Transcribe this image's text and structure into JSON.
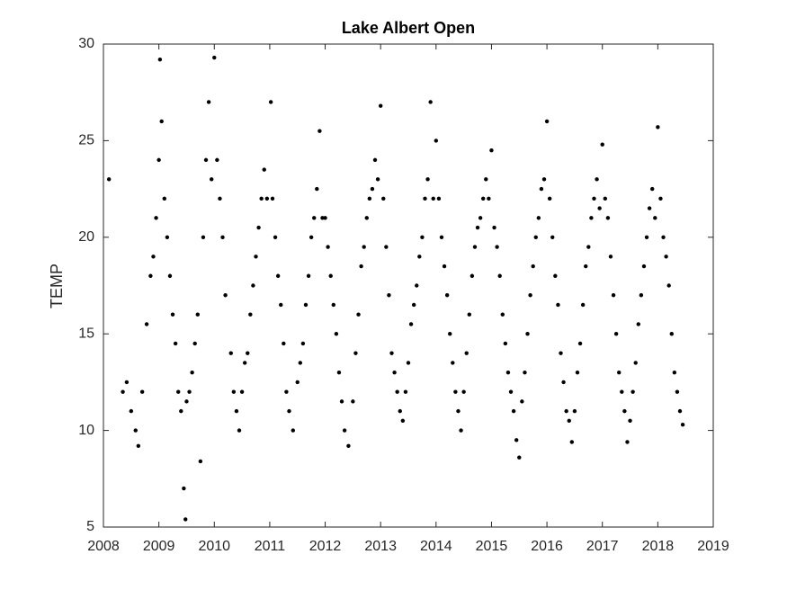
{
  "chart_data": {
    "type": "scatter",
    "title": "Lake Albert Open",
    "y_label": "TEMP",
    "xlim": [
      2008,
      2019
    ],
    "xticks": [
      2008,
      2009,
      2010,
      2011,
      2012,
      2013,
      2014,
      2015,
      2016,
      2017,
      2018,
      2019
    ],
    "ylim": [
      5,
      30
    ],
    "yticks": [
      5,
      10,
      15,
      20,
      25,
      30
    ],
    "grid": false,
    "series": [
      {
        "color": "#000000",
        "x": [
          2008.1,
          2008.35,
          2008.42,
          2008.5,
          2008.58,
          2008.63,
          2008.7,
          2008.78,
          2008.85,
          2008.9,
          2008.95,
          2009.0,
          2009.02,
          2009.05,
          2009.1,
          2009.15,
          2009.2,
          2009.25,
          2009.3,
          2009.35,
          2009.4,
          2009.45,
          2009.48,
          2009.5,
          2009.55,
          2009.6,
          2009.65,
          2009.7,
          2009.75,
          2009.8,
          2009.85,
          2009.9,
          2009.95,
          2010.0,
          2010.05,
          2010.1,
          2010.15,
          2010.2,
          2010.3,
          2010.35,
          2010.4,
          2010.45,
          2010.5,
          2010.55,
          2010.6,
          2010.65,
          2010.7,
          2010.75,
          2010.8,
          2010.85,
          2010.9,
          2010.95,
          2011.02,
          2011.05,
          2011.1,
          2011.15,
          2011.2,
          2011.25,
          2011.3,
          2011.35,
          2011.42,
          2011.5,
          2011.55,
          2011.6,
          2011.65,
          2011.7,
          2011.75,
          2011.8,
          2011.85,
          2011.9,
          2011.95,
          2012.0,
          2012.05,
          2012.1,
          2012.15,
          2012.2,
          2012.25,
          2012.3,
          2012.35,
          2012.42,
          2012.5,
          2012.55,
          2012.6,
          2012.65,
          2012.7,
          2012.75,
          2012.8,
          2012.85,
          2012.9,
          2012.95,
          2013.0,
          2013.05,
          2013.1,
          2013.15,
          2013.2,
          2013.25,
          2013.3,
          2013.35,
          2013.4,
          2013.45,
          2013.5,
          2013.55,
          2013.6,
          2013.65,
          2013.7,
          2013.75,
          2013.8,
          2013.85,
          2013.9,
          2013.95,
          2014.0,
          2014.05,
          2014.1,
          2014.15,
          2014.2,
          2014.25,
          2014.3,
          2014.35,
          2014.4,
          2014.45,
          2014.5,
          2014.55,
          2014.6,
          2014.65,
          2014.7,
          2014.75,
          2014.8,
          2014.85,
          2014.9,
          2014.95,
          2015.0,
          2015.05,
          2015.1,
          2015.15,
          2015.2,
          2015.25,
          2015.3,
          2015.35,
          2015.4,
          2015.45,
          2015.5,
          2015.55,
          2015.6,
          2015.65,
          2015.7,
          2015.75,
          2015.8,
          2015.85,
          2015.9,
          2015.95,
          2016.0,
          2016.05,
          2016.1,
          2016.15,
          2016.2,
          2016.25,
          2016.3,
          2016.35,
          2016.4,
          2016.45,
          2016.5,
          2016.55,
          2016.6,
          2016.65,
          2016.7,
          2016.75,
          2016.8,
          2016.85,
          2016.9,
          2016.95,
          2017.0,
          2017.05,
          2017.1,
          2017.15,
          2017.2,
          2017.25,
          2017.3,
          2017.35,
          2017.4,
          2017.45,
          2017.5,
          2017.55,
          2017.6,
          2017.65,
          2017.7,
          2017.75,
          2017.8,
          2017.85,
          2017.9,
          2017.95,
          2018.0,
          2018.05,
          2018.1,
          2018.15,
          2018.2,
          2018.25,
          2018.3,
          2018.35,
          2018.4,
          2018.45
        ],
        "values": [
          23,
          12,
          12.5,
          11,
          10,
          9.2,
          12,
          15.5,
          18,
          19,
          21,
          24,
          29.2,
          26,
          22,
          20,
          18,
          16,
          14.5,
          12,
          11,
          7,
          5.4,
          11.5,
          12,
          13,
          14.5,
          16,
          8.4,
          20,
          24,
          27,
          23,
          29.3,
          24,
          22,
          20,
          17,
          14,
          12,
          11,
          10,
          12,
          13.5,
          14,
          16,
          17.5,
          19,
          20.5,
          22,
          23.5,
          22,
          27,
          22,
          20,
          18,
          16.5,
          14.5,
          12,
          11,
          10,
          12.5,
          13.5,
          14.5,
          16.5,
          18,
          20,
          21,
          22.5,
          25.5,
          21,
          21,
          19.5,
          18,
          16.5,
          15,
          13,
          11.5,
          10,
          9.2,
          11.5,
          14,
          16,
          18.5,
          19.5,
          21,
          22,
          22.5,
          24,
          23,
          26.8,
          22,
          19.5,
          17,
          14,
          13,
          12,
          11,
          10.5,
          12,
          13.5,
          15.5,
          16.5,
          17.5,
          19,
          20,
          22,
          23,
          27,
          22,
          25,
          22,
          20,
          18.5,
          17,
          15,
          13.5,
          12,
          11,
          10,
          12,
          14,
          16,
          18,
          19.5,
          20.5,
          21,
          22,
          23,
          22,
          24.5,
          20.5,
          19.5,
          18,
          16,
          14.5,
          13,
          12,
          11,
          9.5,
          8.6,
          11.5,
          13,
          15,
          17,
          18.5,
          20,
          21,
          22.5,
          23,
          26,
          22,
          20,
          18,
          16.5,
          14,
          12.5,
          11,
          10.5,
          9.4,
          11,
          13,
          14.5,
          16.5,
          18.5,
          19.5,
          21,
          22,
          23,
          21.5,
          24.8,
          22,
          21,
          19,
          17,
          15,
          13,
          12,
          11,
          9.4,
          10.5,
          12,
          13.5,
          15.5,
          17,
          18.5,
          20,
          21.5,
          22.5,
          21,
          25.7,
          22,
          20,
          19,
          17.5,
          15,
          13,
          12,
          11,
          10.3
        ]
      }
    ]
  }
}
